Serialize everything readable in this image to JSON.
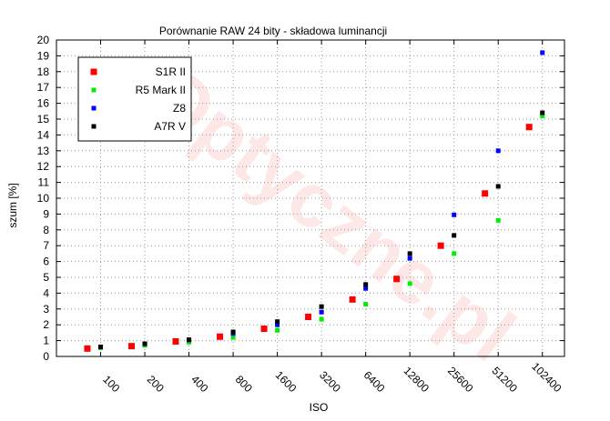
{
  "chart_data": {
    "type": "scatter",
    "title": "Porównanie RAW 24 bity - składowa luminancji",
    "xlabel": "ISO",
    "ylabel": "szum [%]",
    "categories": [
      "100",
      "200",
      "400",
      "800",
      "1600",
      "3200",
      "6400",
      "12800",
      "25600",
      "51200",
      "102400"
    ],
    "ylim": [
      0,
      20
    ],
    "yticks": [
      0,
      1,
      2,
      3,
      4,
      5,
      6,
      7,
      8,
      9,
      10,
      11,
      12,
      13,
      14,
      15,
      16,
      17,
      18,
      19,
      20
    ],
    "grid": true,
    "legend": "top-left",
    "watermark": "Optyczne.pl",
    "series": [
      {
        "name": "S1R II",
        "color": "#ff0000",
        "offset": -0.3,
        "size": 7,
        "values": [
          0.5,
          0.65,
          0.95,
          1.25,
          1.75,
          2.5,
          3.6,
          4.9,
          7.0,
          10.3,
          14.5
        ]
      },
      {
        "name": "R5 Mark II",
        "color": "#00ee00",
        "offset": 0.0,
        "size": 5,
        "values": [
          0.55,
          0.7,
          0.9,
          1.2,
          1.65,
          2.35,
          3.3,
          4.6,
          6.5,
          8.6,
          15.2
        ]
      },
      {
        "name": "Z8",
        "color": "#0000ff",
        "offset": 0.0,
        "size": 5,
        "values": [
          0.6,
          0.8,
          1.05,
          1.45,
          2.0,
          2.8,
          4.3,
          6.2,
          8.95,
          13.0,
          19.2
        ]
      },
      {
        "name": "A7R V",
        "color": "#000000",
        "offset": 0.0,
        "size": 5,
        "values": [
          0.6,
          0.8,
          1.05,
          1.55,
          2.2,
          3.15,
          4.55,
          6.5,
          7.65,
          10.75,
          15.4
        ]
      }
    ]
  }
}
